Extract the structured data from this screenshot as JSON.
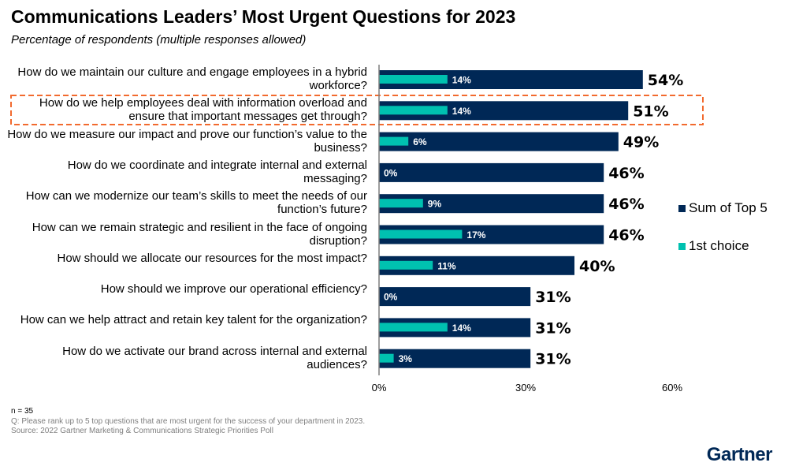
{
  "title": "Communications Leaders’ Most Urgent Questions for 2023",
  "subtitle": "Percentage of respondents (multiple responses allowed)",
  "colors": {
    "sum_top5": "#002856",
    "first_choice": "#00c1b0",
    "highlight": "#f26a2e"
  },
  "chart_data": {
    "type": "bar",
    "orientation": "horizontal",
    "categories": [
      "How do we maintain our culture and engage employees in a hybrid workforce?",
      "How do we help employees deal with information overload and ensure that important messages get through?",
      "How do we measure our impact and prove our function’s value to the business?",
      "How do we coordinate and integrate internal and external messaging?",
      "How can we modernize our team’s skills to meet the needs of our function’s future?",
      "How can we remain strategic and resilient in the face of ongoing disruption?",
      "How should we allocate our resources for the most impact?",
      "How should we improve our operational efficiency?",
      "How can we help attract and retain key talent for the organization?",
      "How do we activate our brand across internal and external audiences?"
    ],
    "series": [
      {
        "name": "Sum of Top 5",
        "values": [
          54,
          51,
          49,
          46,
          46,
          46,
          40,
          31,
          31,
          31
        ],
        "labels": [
          "54%",
          "51%",
          "49%",
          "46%",
          "46%",
          "46%",
          "40%",
          "31%",
          "31%",
          "31%"
        ]
      },
      {
        "name": "1st choice",
        "values": [
          14,
          14,
          6,
          0,
          9,
          17,
          11,
          0,
          14,
          3
        ],
        "labels": [
          "14%",
          "14%",
          "6%",
          "0%",
          "9%",
          "17%",
          "11%",
          "0%",
          "14%",
          "3%"
        ]
      }
    ],
    "xlim": [
      0,
      60
    ],
    "xticks": [
      "0%",
      "30%",
      "60%"
    ],
    "highlighted_category_index": 1,
    "legend": "right",
    "grid": false
  },
  "notes": {
    "n": "n = 35",
    "question": "Q: Please rank up to 5 top questions that are most urgent for the success of your department in 2023.",
    "source": "Source: 2022 Gartner Marketing & Communications Strategic Priorities Poll"
  },
  "logo": "Gartner"
}
